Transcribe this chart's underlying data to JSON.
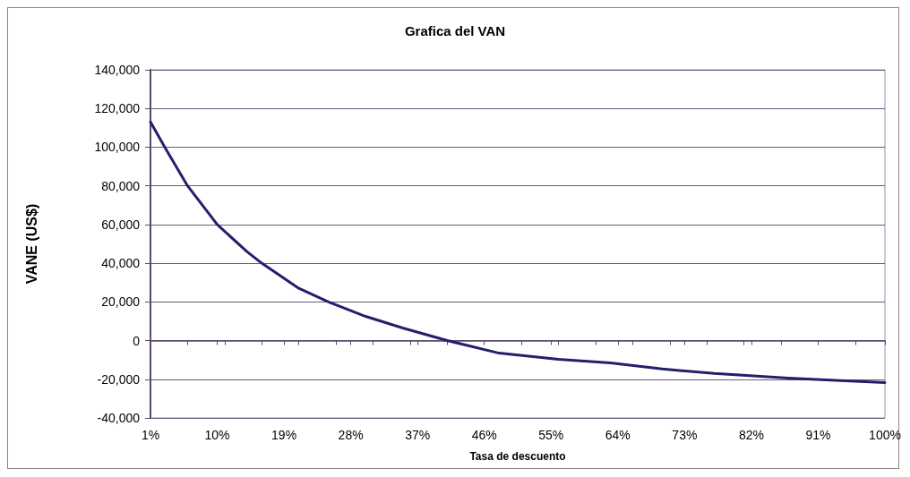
{
  "chart_data": {
    "type": "line",
    "title": "Grafica del VAN",
    "xlabel": "Tasa de descuento",
    "ylabel": "VANE (US$)",
    "x": [
      1,
      3,
      6,
      10,
      14,
      16,
      21,
      25,
      30,
      35,
      41,
      48,
      56,
      63,
      70,
      77,
      87,
      94,
      100
    ],
    "series": [
      {
        "color": "#241f6b",
        "values": [
          113000,
          99500,
          80000,
          60000,
          46000,
          40000,
          27000,
          20000,
          12500,
          6500,
          0,
          -6500,
          -9700,
          -11500,
          -14700,
          -17000,
          -19400,
          -20700,
          -21700
        ]
      }
    ],
    "xlim": [
      1,
      100
    ],
    "xticks": [
      {
        "value": 1,
        "label": "1%"
      },
      {
        "value": 6,
        "label": null
      },
      {
        "value": 10,
        "label": "10%"
      },
      {
        "value": 11,
        "label": null
      },
      {
        "value": 16,
        "label": null
      },
      {
        "value": 19,
        "label": "19%"
      },
      {
        "value": 21,
        "label": null
      },
      {
        "value": 26,
        "label": null
      },
      {
        "value": 28,
        "label": "28%"
      },
      {
        "value": 31,
        "label": null
      },
      {
        "value": 36,
        "label": null
      },
      {
        "value": 37,
        "label": "37%"
      },
      {
        "value": 41,
        "label": null
      },
      {
        "value": 46,
        "label": "46%"
      },
      {
        "value": 51,
        "label": null
      },
      {
        "value": 55,
        "label": "55%"
      },
      {
        "value": 56,
        "label": null
      },
      {
        "value": 61,
        "label": null
      },
      {
        "value": 64,
        "label": "64%"
      },
      {
        "value": 66,
        "label": null
      },
      {
        "value": 71,
        "label": null
      },
      {
        "value": 73,
        "label": "73%"
      },
      {
        "value": 76,
        "label": null
      },
      {
        "value": 81,
        "label": null
      },
      {
        "value": 82,
        "label": "82%"
      },
      {
        "value": 86,
        "label": null
      },
      {
        "value": 91,
        "label": "91%"
      },
      {
        "value": 96,
        "label": null
      },
      {
        "value": 100,
        "label": "100%"
      }
    ],
    "ylim": [
      -40000,
      140000
    ],
    "yticks": [
      {
        "value": -40000,
        "label": "-40,000"
      },
      {
        "value": -20000,
        "label": "-20,000"
      },
      0,
      {
        "value": 20000,
        "label": "20,000"
      },
      {
        "value": 40000,
        "label": "40,000"
      },
      {
        "value": 60000,
        "label": "60,000"
      },
      {
        "value": 80000,
        "label": "80,000"
      },
      {
        "value": 100000,
        "label": "100,000"
      },
      {
        "value": 120000,
        "label": "120,000"
      },
      {
        "value": 140000,
        "label": "140,000"
      }
    ],
    "grid": "y",
    "marker": "none",
    "line_style": "solid"
  }
}
